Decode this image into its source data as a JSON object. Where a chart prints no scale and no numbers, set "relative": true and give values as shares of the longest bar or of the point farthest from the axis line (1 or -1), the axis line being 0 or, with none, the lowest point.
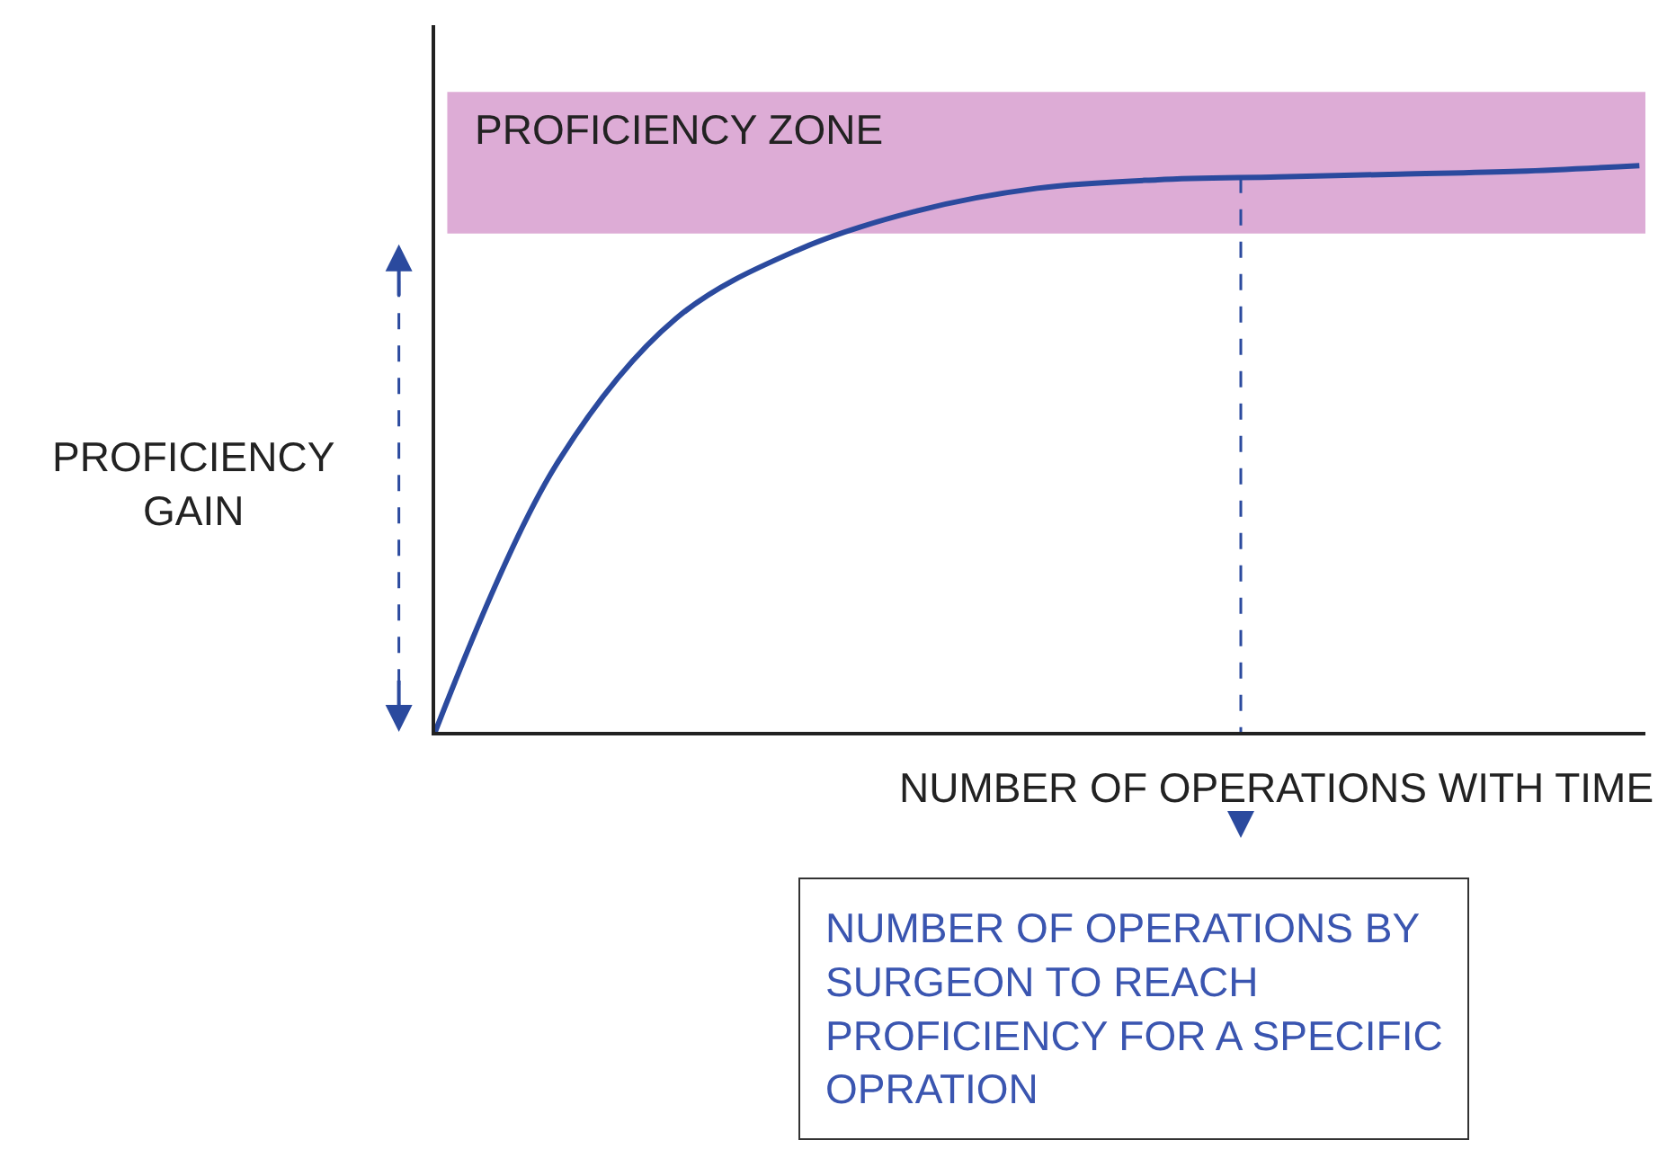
{
  "chart_data": {
    "type": "line",
    "relative": true,
    "xlabel": "NUMBER OF OPERATIONS WITH TIME",
    "ylabel": "PROFICIENCY GAIN",
    "categories": [
      null,
      null,
      null,
      null,
      null,
      null,
      null,
      null,
      null,
      null,
      null
    ],
    "series": [
      {
        "color": "#2b4a9e",
        "values": [
          0,
          0.47,
          0.73,
          0.85,
          0.92,
          0.96,
          0.975,
          0.98,
          0.985,
          0.99,
          1
        ]
      }
    ],
    "bands": [
      {
        "axis": "y",
        "from": 0.88,
        "to": 1.13,
        "label": "PROFICIENCY ZONE",
        "color": "#d9a3d2"
      }
    ],
    "annotations": [
      "NUMBER OF OPERATIONS BY\nSURGEON TO REACH\nPROFICIENCY FOR A SPECIFIC\nOPRATION"
    ],
    "grid": false
  }
}
